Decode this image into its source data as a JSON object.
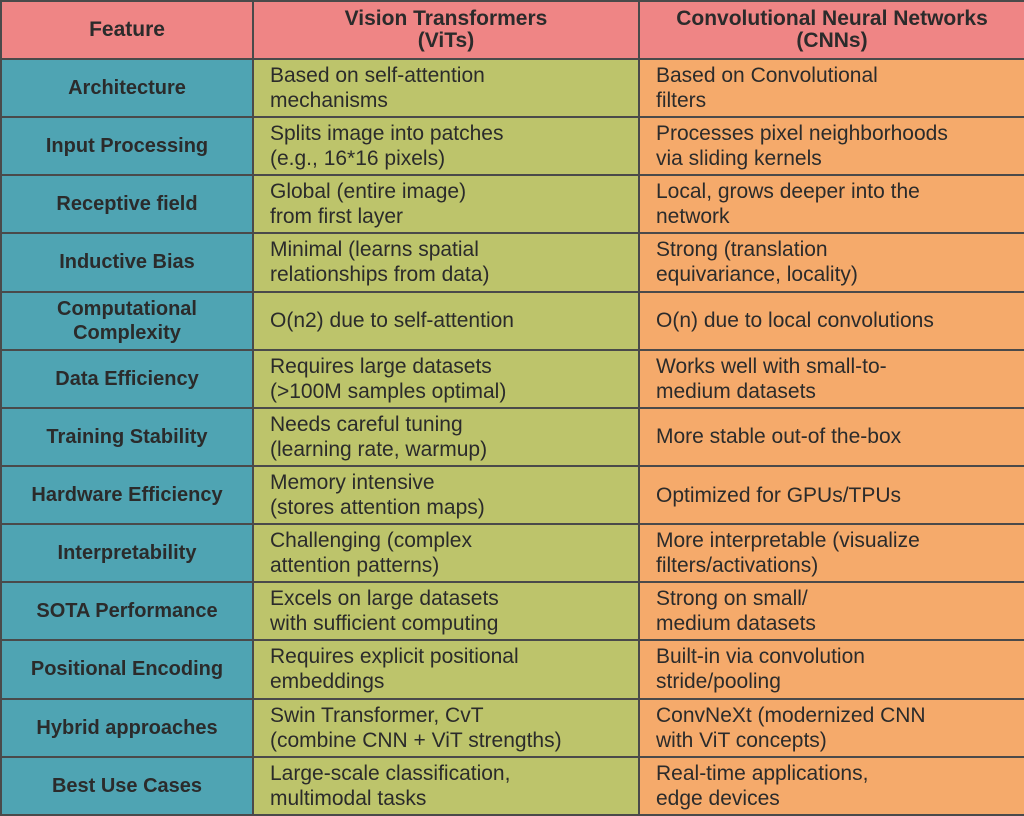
{
  "colors": {
    "header": "#ef8585",
    "feature_col": "#4fa4b3",
    "vit_col": "#bdc46b",
    "cnn_col": "#f5aa6b",
    "border": "#4a4a4a"
  },
  "headers": [
    {
      "line1": "Feature",
      "line2": ""
    },
    {
      "line1": "Vision Transformers",
      "line2": "(ViTs)"
    },
    {
      "line1": "Convolutional Neural Networks",
      "line2": "(CNNs)"
    }
  ],
  "rows": [
    {
      "feature": [
        "Architecture",
        ""
      ],
      "vit": [
        "Based on self-attention",
        "mechanisms"
      ],
      "cnn": [
        "Based on Convolutional",
        "filters"
      ]
    },
    {
      "feature": [
        "Input Processing",
        ""
      ],
      "vit": [
        "Splits image into patches",
        "(e.g., 16*16 pixels)"
      ],
      "cnn": [
        "Processes pixel neighborhoods",
        "via sliding kernels"
      ]
    },
    {
      "feature": [
        "Receptive field",
        ""
      ],
      "vit": [
        "Global (entire image)",
        "from first layer"
      ],
      "cnn": [
        "Local, grows deeper into the",
        "network"
      ]
    },
    {
      "feature": [
        "Inductive Bias",
        ""
      ],
      "vit": [
        "Minimal (learns spatial",
        "relationships from data)"
      ],
      "cnn": [
        "Strong (translation",
        "equivariance, locality)"
      ]
    },
    {
      "feature": [
        "Computational",
        "Complexity"
      ],
      "vit": [
        "O(n2) due to self-attention",
        ""
      ],
      "cnn": [
        "O(n) due to local convolutions",
        ""
      ]
    },
    {
      "feature": [
        "Data Efficiency",
        ""
      ],
      "vit": [
        "Requires large datasets",
        "(>100M samples optimal)"
      ],
      "cnn": [
        "Works well with small-to-",
        "medium datasets"
      ]
    },
    {
      "feature": [
        "Training Stability",
        ""
      ],
      "vit": [
        "Needs careful tuning",
        "(learning rate, warmup)"
      ],
      "cnn": [
        "More stable out-of the-box",
        ""
      ]
    },
    {
      "feature": [
        "Hardware Efficiency",
        ""
      ],
      "vit": [
        "Memory intensive",
        "(stores attention maps)"
      ],
      "cnn": [
        "Optimized for GPUs/TPUs",
        ""
      ]
    },
    {
      "feature": [
        "Interpretability",
        ""
      ],
      "vit": [
        "Challenging (complex",
        "attention patterns)"
      ],
      "cnn": [
        "More interpretable (visualize",
        "filters/activations)"
      ]
    },
    {
      "feature": [
        "SOTA Performance",
        ""
      ],
      "vit": [
        "Excels on large datasets",
        "with sufficient computing"
      ],
      "cnn": [
        "Strong on small/",
        "medium datasets"
      ]
    },
    {
      "feature": [
        "Positional Encoding",
        ""
      ],
      "vit": [
        "Requires explicit positional",
        "embeddings"
      ],
      "cnn": [
        "Built-in via convolution",
        "stride/pooling"
      ]
    },
    {
      "feature": [
        "Hybrid approaches",
        ""
      ],
      "vit": [
        "Swin Transformer, CvT",
        "(combine CNN + ViT strengths)"
      ],
      "cnn": [
        "ConvNeXt (modernized CNN",
        "with ViT concepts)"
      ]
    },
    {
      "feature": [
        "Best Use Cases",
        ""
      ],
      "vit": [
        "Large-scale classification,",
        "multimodal tasks"
      ],
      "cnn": [
        "Real-time applications,",
        "edge devices"
      ]
    }
  ]
}
